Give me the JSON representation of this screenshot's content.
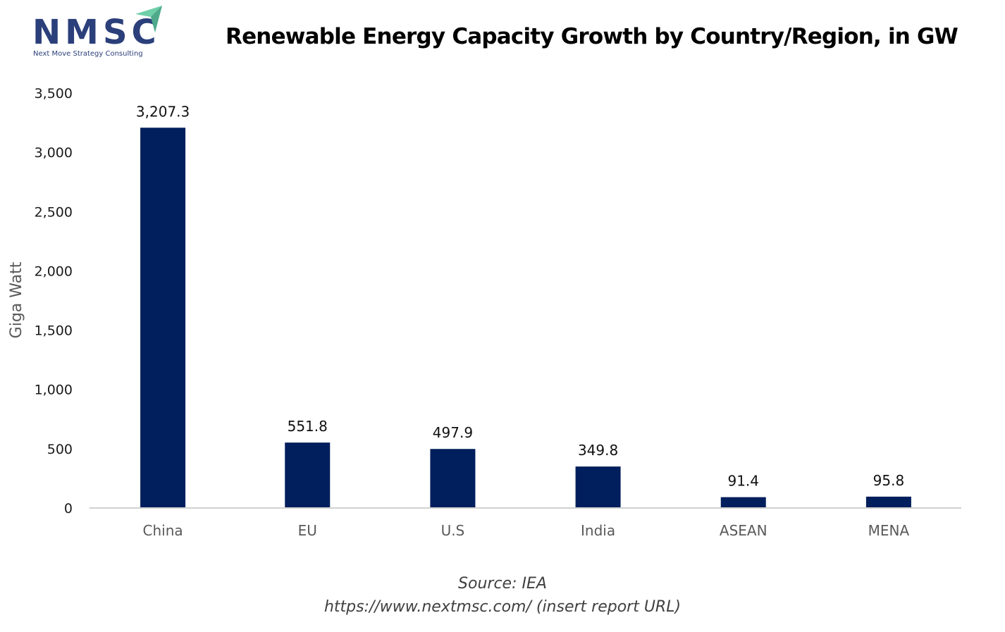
{
  "logo": {
    "name": "NMSC",
    "tagline": "Next Move Strategy Consulting",
    "icon": "paper-plane-arrow-icon",
    "brand_color": "#2b3f7a",
    "accent_color": "#6fcfa8"
  },
  "title": "Renewable Energy Capacity Growth by Country/Region, in GW",
  "source": {
    "line1": "Source: IEA",
    "line2": "https://www.nextmsc.com/ (insert report URL)"
  },
  "chart_data": {
    "type": "bar",
    "title": "Renewable Energy Capacity Growth by Country/Region, in GW",
    "xlabel": "",
    "ylabel": "Giga Watt",
    "categories": [
      "China",
      "EU",
      "U.S",
      "India",
      "ASEAN",
      "MENA"
    ],
    "values": [
      3207.3,
      551.8,
      497.9,
      349.8,
      91.4,
      95.8
    ],
    "data_labels": [
      "3,207.3",
      "551.8",
      "497.9",
      "349.8",
      "91.4",
      "95.8"
    ],
    "ylim": [
      0,
      3500
    ],
    "yticks": [
      0,
      500,
      1000,
      1500,
      2000,
      2500,
      3000,
      3500
    ],
    "ytick_labels": [
      "0",
      "500",
      "1,000",
      "1,500",
      "2,000",
      "2,500",
      "3,000",
      "3,500"
    ],
    "grid": false,
    "legend": "none",
    "bar_color": "#001f5c"
  }
}
